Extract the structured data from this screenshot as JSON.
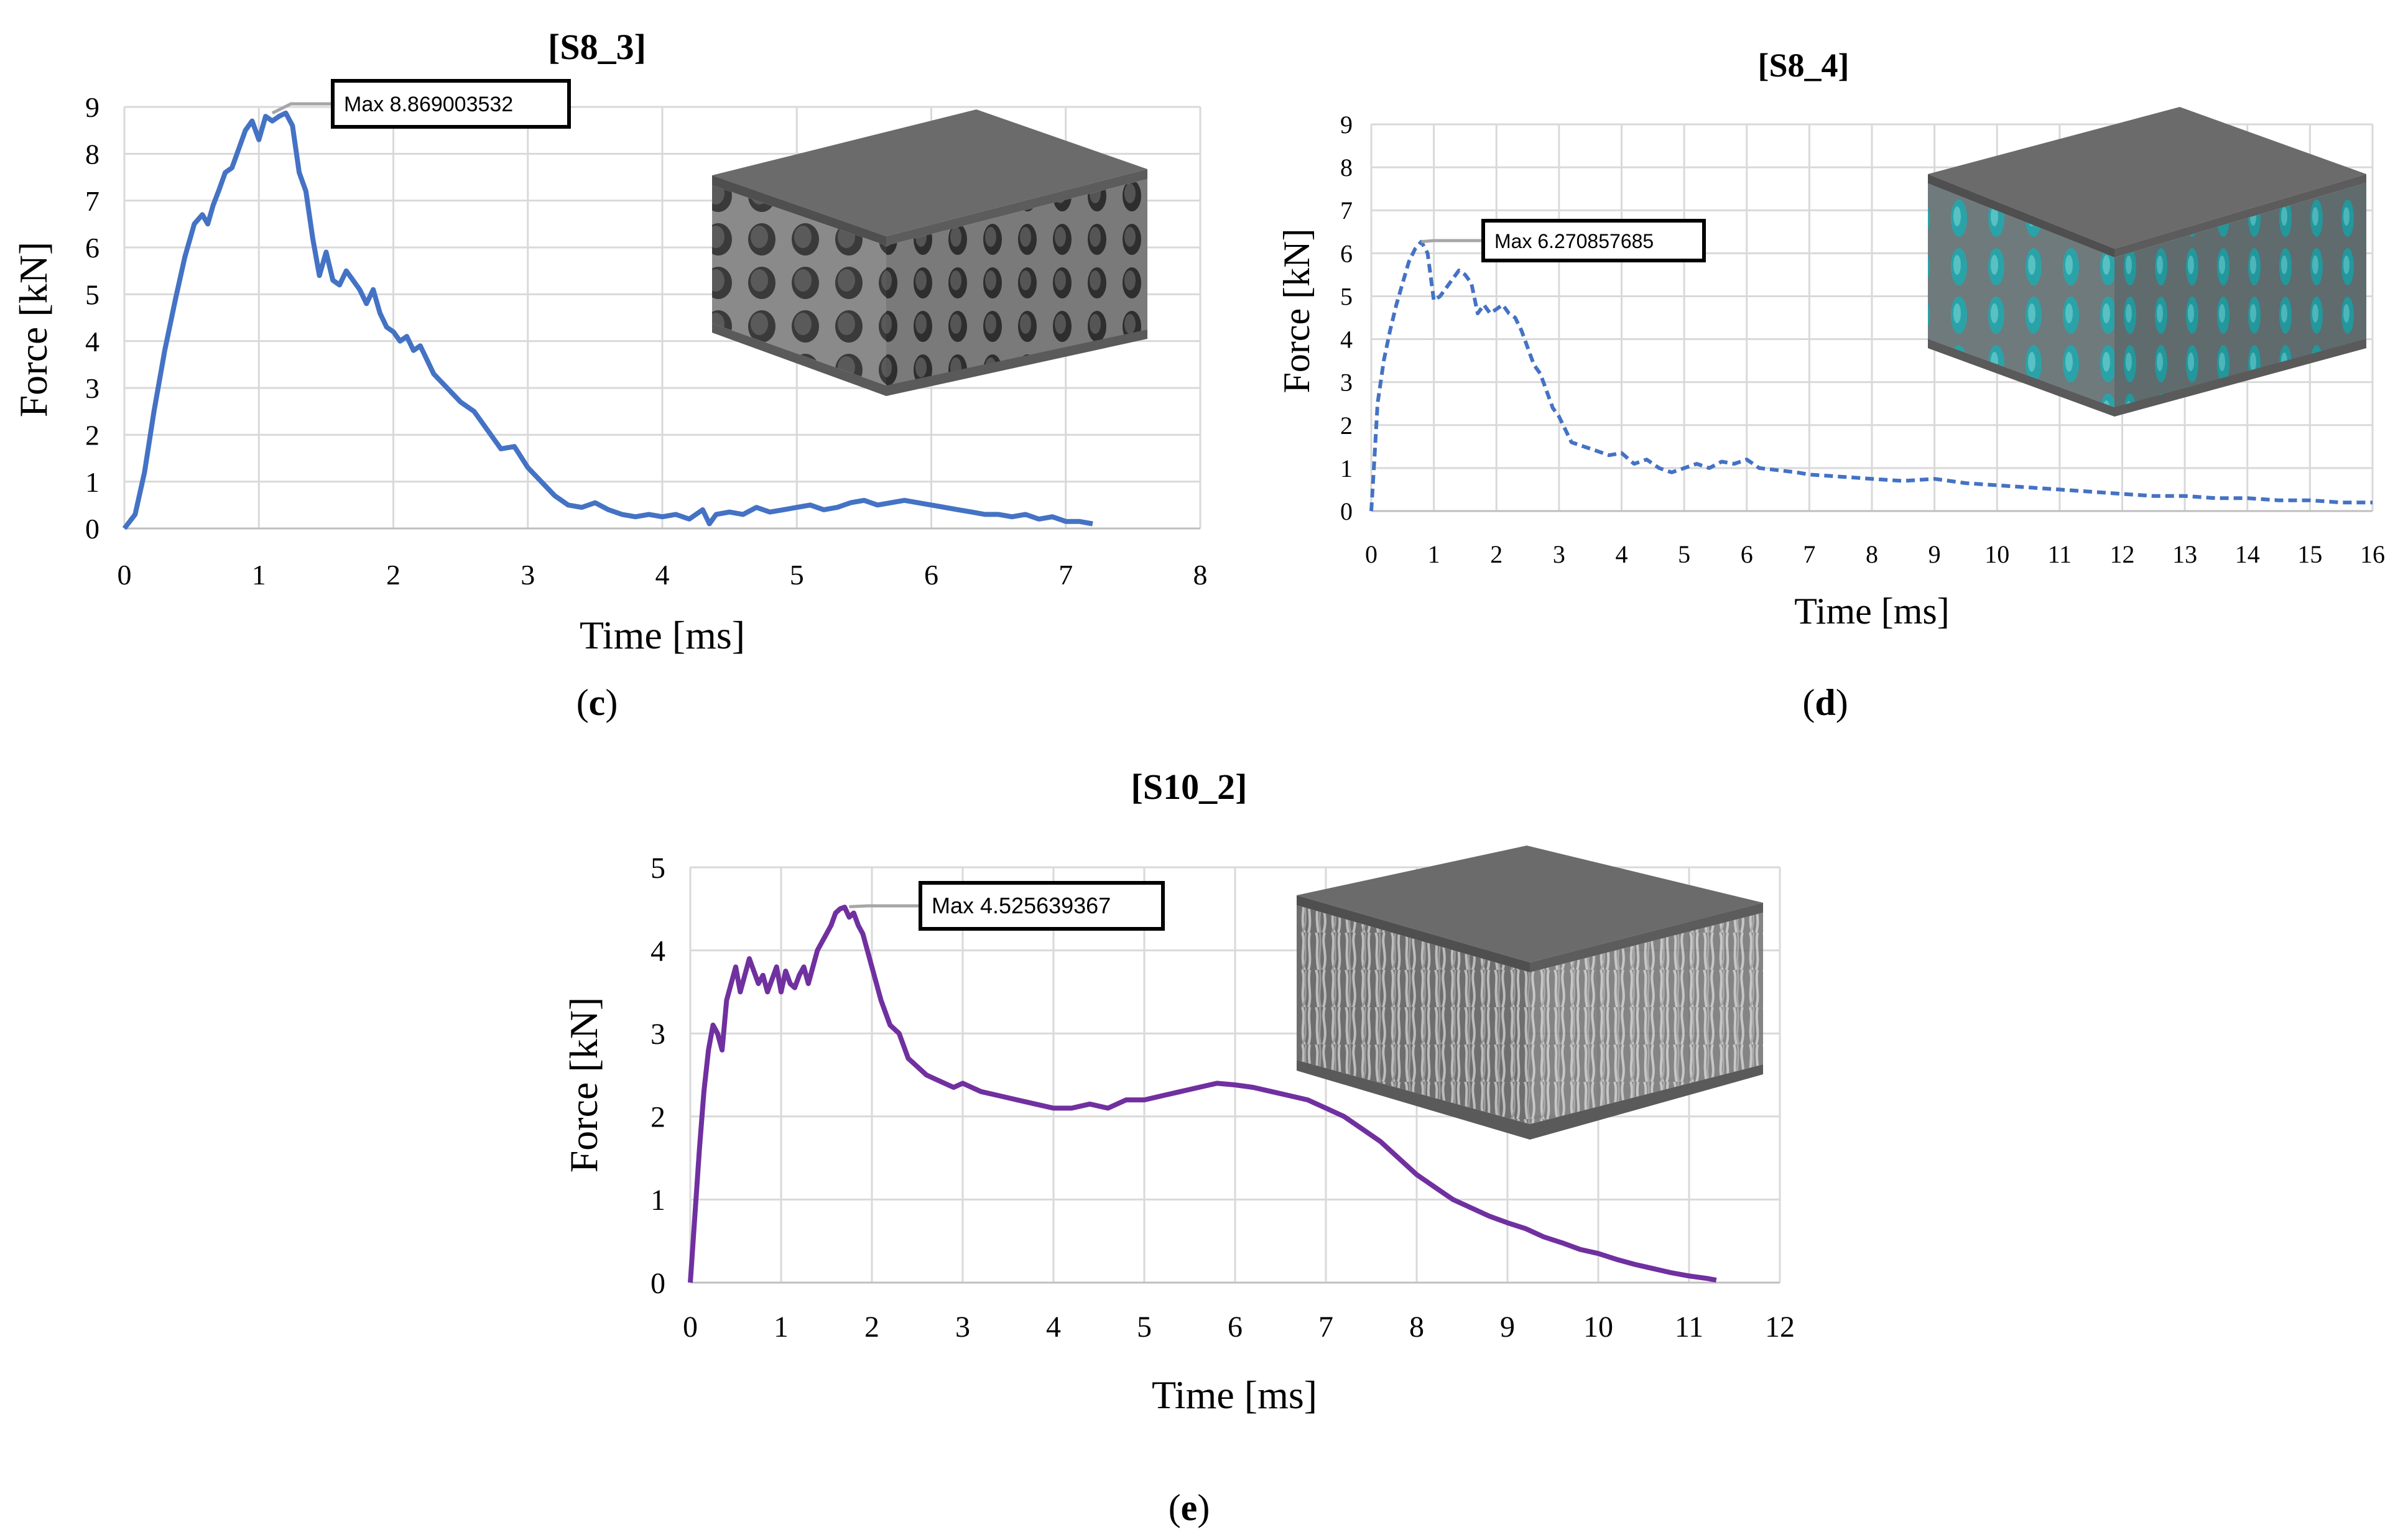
{
  "chart_data": [
    {
      "id": "c",
      "type": "line",
      "title": "[S8_3]",
      "caption_letter": "c",
      "xlabel": "Time [ms]",
      "ylabel": "Force [kN]",
      "xlim": [
        0,
        8
      ],
      "ylim": [
        0,
        9
      ],
      "xticks": [
        0,
        1,
        2,
        3,
        4,
        5,
        6,
        7,
        8
      ],
      "yticks": [
        0,
        1,
        2,
        3,
        4,
        5,
        6,
        7,
        8,
        9
      ],
      "grid": true,
      "line_style": "solid",
      "annotation": {
        "text": "Max 8.869003532",
        "x": 1.1,
        "y": 8.869
      },
      "inset": "cellular block with circular pores",
      "series": [
        {
          "name": "S8_3",
          "color": "#4472c4",
          "x": [
            0,
            0.08,
            0.15,
            0.22,
            0.3,
            0.38,
            0.45,
            0.52,
            0.58,
            0.62,
            0.66,
            0.7,
            0.75,
            0.8,
            0.85,
            0.9,
            0.95,
            1.0,
            1.05,
            1.1,
            1.15,
            1.2,
            1.25,
            1.3,
            1.35,
            1.4,
            1.45,
            1.5,
            1.55,
            1.6,
            1.65,
            1.7,
            1.75,
            1.8,
            1.85,
            1.9,
            1.95,
            2.0,
            2.05,
            2.1,
            2.15,
            2.2,
            2.3,
            2.4,
            2.5,
            2.6,
            2.7,
            2.8,
            2.9,
            3.0,
            3.1,
            3.2,
            3.3,
            3.4,
            3.5,
            3.6,
            3.7,
            3.8,
            3.9,
            4.0,
            4.1,
            4.2,
            4.3,
            4.35,
            4.4,
            4.5,
            4.6,
            4.7,
            4.8,
            4.9,
            5.0,
            5.1,
            5.2,
            5.3,
            5.4,
            5.5,
            5.6,
            5.7,
            5.8,
            5.9,
            6.0,
            6.1,
            6.2,
            6.3,
            6.4,
            6.5,
            6.6,
            6.7,
            6.8,
            6.9,
            7.0,
            7.1,
            7.2
          ],
          "values": [
            0,
            0.3,
            1.2,
            2.5,
            3.8,
            4.9,
            5.8,
            6.5,
            6.7,
            6.5,
            6.9,
            7.2,
            7.6,
            7.7,
            8.1,
            8.5,
            8.7,
            8.3,
            8.8,
            8.7,
            8.8,
            8.87,
            8.6,
            7.6,
            7.2,
            6.2,
            5.4,
            5.9,
            5.3,
            5.2,
            5.5,
            5.3,
            5.1,
            4.8,
            5.1,
            4.6,
            4.3,
            4.2,
            4.0,
            4.1,
            3.8,
            3.9,
            3.3,
            3.0,
            2.7,
            2.5,
            2.1,
            1.7,
            1.75,
            1.3,
            1.0,
            0.7,
            0.5,
            0.45,
            0.55,
            0.4,
            0.3,
            0.25,
            0.3,
            0.25,
            0.3,
            0.2,
            0.4,
            0.1,
            0.3,
            0.35,
            0.3,
            0.45,
            0.35,
            0.4,
            0.45,
            0.5,
            0.4,
            0.45,
            0.55,
            0.6,
            0.5,
            0.55,
            0.6,
            0.55,
            0.5,
            0.45,
            0.4,
            0.35,
            0.3,
            0.3,
            0.25,
            0.3,
            0.2,
            0.25,
            0.15,
            0.15,
            0.1
          ]
        }
      ]
    },
    {
      "id": "d",
      "type": "line",
      "title": "[S8_4]",
      "caption_letter": "d",
      "xlabel": "Time [ms]",
      "ylabel": "Force [kN]",
      "xlim": [
        0,
        16
      ],
      "ylim": [
        0,
        9
      ],
      "xticks": [
        0,
        1,
        2,
        3,
        4,
        5,
        6,
        7,
        8,
        9,
        10,
        11,
        12,
        13,
        14,
        15,
        16
      ],
      "yticks": [
        0,
        1,
        2,
        3,
        4,
        5,
        6,
        7,
        8,
        9
      ],
      "grid": true,
      "line_style": "dashed",
      "annotation": {
        "text": "Max 6.270857685",
        "x": 0.8,
        "y": 6.27
      },
      "inset": "block with teal elliptical pores",
      "series": [
        {
          "name": "S8_4",
          "color": "#4472c4",
          "x": [
            0,
            0.05,
            0.1,
            0.2,
            0.3,
            0.4,
            0.5,
            0.6,
            0.7,
            0.8,
            0.9,
            1.0,
            1.1,
            1.2,
            1.3,
            1.4,
            1.5,
            1.6,
            1.7,
            1.8,
            1.9,
            2.0,
            2.1,
            2.2,
            2.3,
            2.4,
            2.5,
            2.6,
            2.7,
            2.8,
            2.9,
            3.0,
            3.1,
            3.2,
            3.4,
            3.6,
            3.8,
            4.0,
            4.2,
            4.4,
            4.6,
            4.8,
            5.0,
            5.2,
            5.4,
            5.6,
            5.8,
            6.0,
            6.2,
            6.5,
            6.8,
            7.0,
            7.5,
            8.0,
            8.5,
            9.0,
            9.5,
            10.0,
            10.5,
            11.0,
            11.5,
            12.0,
            12.5,
            13.0,
            13.5,
            14.0,
            14.5,
            15.0,
            15.5,
            16.0
          ],
          "values": [
            0,
            1.2,
            2.5,
            3.5,
            4.2,
            4.8,
            5.3,
            5.8,
            6.1,
            6.27,
            6.0,
            4.9,
            5.0,
            5.2,
            5.4,
            5.6,
            5.5,
            5.3,
            4.6,
            4.8,
            4.6,
            4.7,
            4.8,
            4.6,
            4.5,
            4.2,
            3.8,
            3.4,
            3.2,
            2.8,
            2.4,
            2.2,
            1.9,
            1.6,
            1.5,
            1.4,
            1.3,
            1.35,
            1.1,
            1.2,
            1.0,
            0.9,
            1.0,
            1.1,
            1.0,
            1.15,
            1.1,
            1.2,
            1.0,
            0.95,
            0.9,
            0.85,
            0.8,
            0.75,
            0.7,
            0.75,
            0.65,
            0.6,
            0.55,
            0.5,
            0.45,
            0.4,
            0.35,
            0.35,
            0.3,
            0.3,
            0.25,
            0.25,
            0.2,
            0.2
          ]
        }
      ]
    },
    {
      "id": "e",
      "type": "line",
      "title": "[S10_2]",
      "caption_letter": "e",
      "xlabel": "Time [ms]",
      "ylabel": "Force [kN]",
      "xlim": [
        0,
        12
      ],
      "ylim": [
        0,
        5
      ],
      "xticks": [
        0,
        1,
        2,
        3,
        4,
        5,
        6,
        7,
        8,
        9,
        10,
        11,
        12
      ],
      "yticks": [
        0,
        1,
        2,
        3,
        4,
        5
      ],
      "grid": true,
      "line_style": "solid",
      "annotation": {
        "text": "Max 4.525639367",
        "x": 1.75,
        "y": 4.526
      },
      "inset": "block with random fibrous core",
      "series": [
        {
          "name": "S10_2",
          "color": "#7030a0",
          "x": [
            0,
            0.05,
            0.1,
            0.15,
            0.2,
            0.25,
            0.3,
            0.35,
            0.4,
            0.45,
            0.5,
            0.55,
            0.6,
            0.65,
            0.7,
            0.75,
            0.8,
            0.85,
            0.9,
            0.95,
            1.0,
            1.05,
            1.1,
            1.15,
            1.2,
            1.25,
            1.3,
            1.35,
            1.4,
            1.45,
            1.5,
            1.55,
            1.6,
            1.65,
            1.7,
            1.75,
            1.8,
            1.85,
            1.9,
            1.95,
            2.0,
            2.05,
            2.1,
            2.2,
            2.3,
            2.4,
            2.5,
            2.6,
            2.7,
            2.8,
            2.9,
            3.0,
            3.2,
            3.4,
            3.6,
            3.8,
            4.0,
            4.2,
            4.4,
            4.6,
            4.8,
            5.0,
            5.2,
            5.4,
            5.6,
            5.8,
            6.0,
            6.2,
            6.4,
            6.6,
            6.8,
            7.0,
            7.2,
            7.4,
            7.6,
            7.8,
            8.0,
            8.2,
            8.4,
            8.6,
            8.8,
            9.0,
            9.2,
            9.4,
            9.6,
            9.8,
            10.0,
            10.2,
            10.4,
            10.6,
            10.8,
            11.0,
            11.2,
            11.3
          ],
          "values": [
            0,
            0.8,
            1.6,
            2.3,
            2.8,
            3.1,
            3.0,
            2.8,
            3.4,
            3.6,
            3.8,
            3.5,
            3.7,
            3.9,
            3.75,
            3.6,
            3.7,
            3.5,
            3.65,
            3.8,
            3.5,
            3.75,
            3.6,
            3.55,
            3.7,
            3.8,
            3.6,
            3.8,
            4.0,
            4.1,
            4.2,
            4.3,
            4.45,
            4.5,
            4.52,
            4.4,
            4.45,
            4.3,
            4.2,
            4.0,
            3.8,
            3.6,
            3.4,
            3.1,
            3.0,
            2.7,
            2.6,
            2.5,
            2.45,
            2.4,
            2.35,
            2.4,
            2.3,
            2.25,
            2.2,
            2.15,
            2.1,
            2.1,
            2.15,
            2.1,
            2.2,
            2.2,
            2.25,
            2.3,
            2.35,
            2.4,
            2.38,
            2.35,
            2.3,
            2.25,
            2.2,
            2.1,
            2.0,
            1.85,
            1.7,
            1.5,
            1.3,
            1.15,
            1.0,
            0.9,
            0.8,
            0.72,
            0.65,
            0.55,
            0.48,
            0.4,
            0.35,
            0.28,
            0.22,
            0.17,
            0.12,
            0.08,
            0.05,
            0.03
          ]
        }
      ]
    }
  ]
}
